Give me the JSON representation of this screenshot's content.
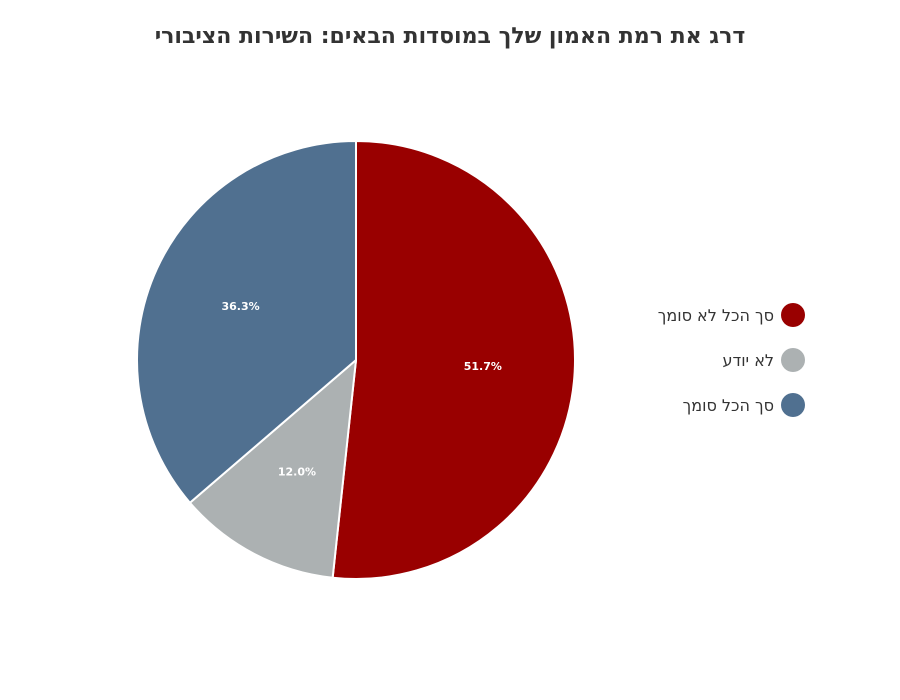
{
  "chart_data": {
    "type": "pie",
    "title": "דרג את רמת האמון שלך במוסדות הבאים: השירות הציבורי",
    "slices": [
      {
        "label": "סך הכל לא סומך",
        "value": 51.7,
        "display": "51.7%",
        "color": "#990000"
      },
      {
        "label": "לא יודע",
        "value": 12.0,
        "display": "12.0%",
        "color": "#acb1b2"
      },
      {
        "label": "סך הכל סומך",
        "value": 36.3,
        "display": "36.3%",
        "color": "#507090"
      }
    ],
    "legend": {
      "position": "right",
      "items": [
        {
          "label": "סך הכל לא סומך",
          "color": "#990000"
        },
        {
          "label": "לא יודע",
          "color": "#acb1b2"
        },
        {
          "label": "סך הכל סומך",
          "color": "#507090"
        }
      ]
    }
  }
}
